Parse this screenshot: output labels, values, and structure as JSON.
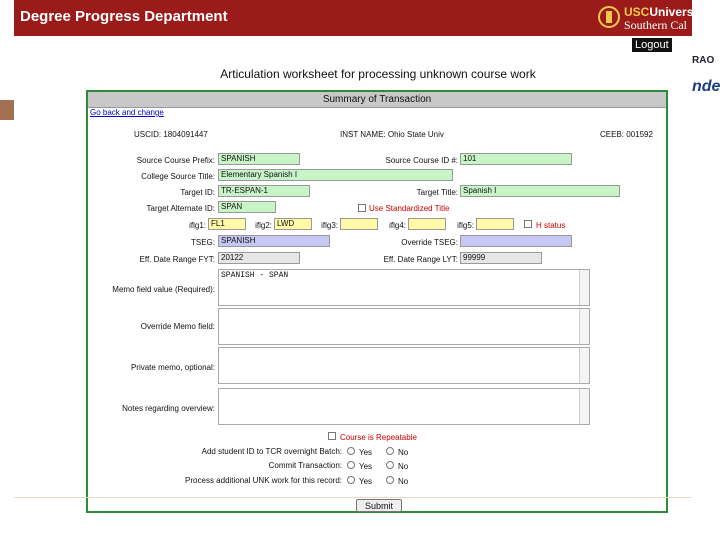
{
  "header": {
    "title": "Degree Progress Department",
    "usc_line1_a": "USC",
    "usc_line1_b": "Universi",
    "usc_line2": "Southern Cal",
    "logout": "Logout",
    "edge_text_1": "RAO",
    "edge_text_2": "nde"
  },
  "page_heading": "Articulation worksheet for processing unknown course work",
  "summary_title": "Summary of Transaction",
  "back_link": "Go back and change",
  "info": {
    "uscid": "USCID: 1804091447",
    "inst_name": "INST NAME: Ohio State Univ",
    "ceeb": "CEEB: 001592"
  },
  "fields": {
    "source_prefix_label": "Source Course Prefix:",
    "source_prefix_value": "SPANISH",
    "source_id_label": "Source Course ID #:",
    "source_id_value": "101",
    "college_title_label": "College Source Title:",
    "college_title_value": "Elementary Spanish I",
    "target_id_label": "Target ID:",
    "target_id_value": "TR-ESPAN-1",
    "target_title_label": "Target Title:",
    "target_title_value": "Spanish I",
    "target_alt_label": "Target Alternate ID:",
    "target_alt_value": "SPAN",
    "use_std_title": "Use Standardized Title",
    "iflg1_label": "iflg1:",
    "iflg1_value": "FL1",
    "iflg2_label": "iflg2:",
    "iflg2_value": "LWD",
    "iflg3_label": "iflg3:",
    "iflg3_value": "",
    "iflg4_label": "iflg4:",
    "iflg4_value": "",
    "iflg5_label": "iflg5:",
    "iflg5_value": "",
    "h_status": "H status",
    "tseg_label": "TSEG:",
    "tseg_value": "SPANISH",
    "override_tseg_label": "Override TSEG:",
    "override_tseg_value": "",
    "eff_fyt_label": "Eff. Date Range FYT:",
    "eff_fyt_value": "20122",
    "eff_lyt_label": "Eff. Date Range LYT:",
    "eff_lyt_value": "99999"
  },
  "memo": {
    "memo_label": "Memo field value (Required):",
    "memo_value": "SPANISH - SPAN",
    "override_memo_label": "Override Memo field:",
    "override_memo_value": "",
    "private_memo_label": "Private memo, optional:",
    "private_memo_value": "",
    "notes_label": "Notes regarding overview:",
    "notes_value": ""
  },
  "options": {
    "repeatable": "Course is Repeatable",
    "add_student_label": "Add student ID to TCR overnight Batch:",
    "commit_label": "Commit Transaction:",
    "process_label": "Process additional UNK work for this record:",
    "yes": "Yes",
    "no": "No"
  },
  "submit": "Submit"
}
